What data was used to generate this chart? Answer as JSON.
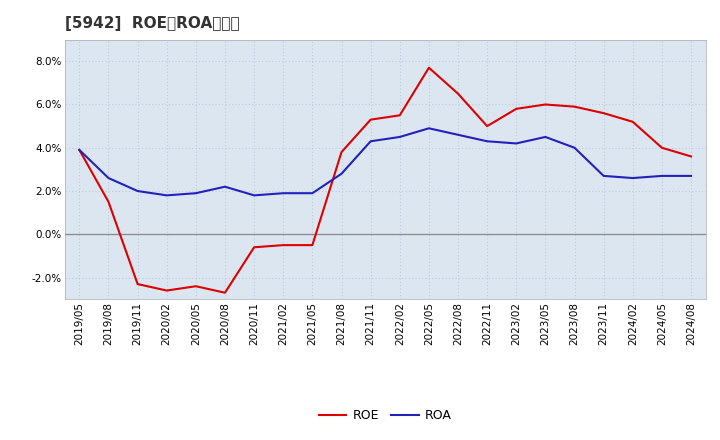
{
  "title": "[5942]  ROE、ROAの推移",
  "x_labels": [
    "2019/05",
    "2019/08",
    "2019/11",
    "2020/02",
    "2020/05",
    "2020/08",
    "2020/11",
    "2021/02",
    "2021/05",
    "2021/08",
    "2021/11",
    "2022/02",
    "2022/05",
    "2022/08",
    "2022/11",
    "2023/02",
    "2023/05",
    "2023/08",
    "2023/11",
    "2024/02",
    "2024/05",
    "2024/08"
  ],
  "roe": [
    3.9,
    1.5,
    -2.3,
    -2.6,
    -2.4,
    -2.7,
    -0.6,
    -0.5,
    -0.5,
    3.8,
    5.3,
    5.5,
    7.7,
    6.5,
    5.0,
    5.8,
    6.0,
    5.9,
    5.6,
    5.2,
    4.0,
    3.6
  ],
  "roa": [
    3.9,
    2.6,
    2.0,
    1.8,
    1.9,
    2.2,
    1.8,
    1.9,
    1.9,
    2.8,
    4.3,
    4.5,
    4.9,
    4.6,
    4.3,
    4.2,
    4.5,
    4.0,
    2.7,
    2.6,
    2.7,
    2.7
  ],
  "roe_color": "#dd0000",
  "roa_color": "#2222bb",
  "background_color": "#ffffff",
  "plot_bg_color": "#dce6f1",
  "grid_color": "#bbccdd",
  "zero_line_color": "#888888",
  "ylim": [
    -3.0,
    9.0
  ],
  "yticks": [
    -2.0,
    0.0,
    2.0,
    4.0,
    6.0,
    8.0
  ],
  "line_width": 1.5,
  "title_fontsize": 11,
  "legend_fontsize": 9,
  "tick_fontsize": 7.5
}
